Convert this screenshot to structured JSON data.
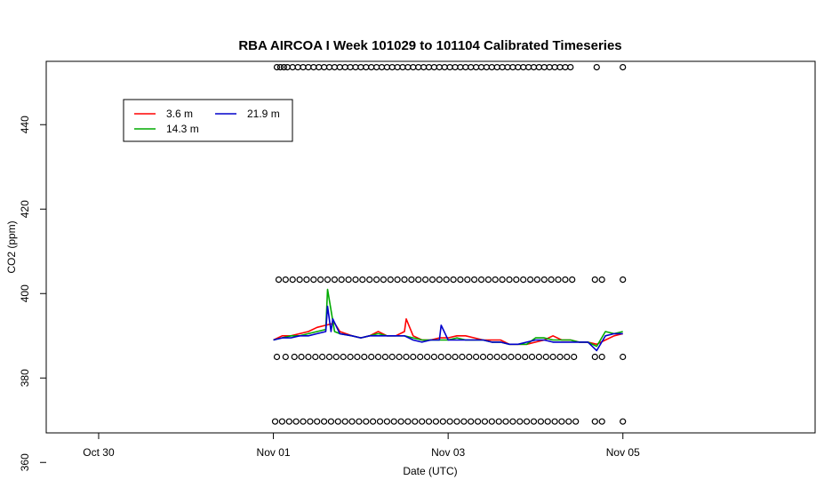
{
  "chart_data": {
    "type": "line",
    "title": "RBA AIRCOA I  Week 101029 to 101104  Calibrated Timeseries",
    "xlabel": "Date (UTC)",
    "ylabel": "CO2 (ppm)",
    "xlim": [
      -1.3,
      3.1
    ],
    "ylim": [
      367,
      455
    ],
    "x_ticks": [
      {
        "value": -1,
        "label": "Oct 30"
      },
      {
        "value": 0,
        "label": "Nov 01"
      },
      {
        "value": 1,
        "label": "Nov 03"
      },
      {
        "value": 2,
        "label": "Nov 05"
      }
    ],
    "y_ticks": [
      {
        "value": 360,
        "label": "360"
      },
      {
        "value": 380,
        "label": "380"
      },
      {
        "value": 400,
        "label": "400"
      },
      {
        "value": 420,
        "label": "420"
      },
      {
        "value": 440,
        "label": "440"
      }
    ],
    "legend": {
      "position": "top-left",
      "entries": [
        {
          "name": "3.6 m",
          "color": "#ff0000"
        },
        {
          "name": "21.9 m",
          "color": "#0000cc"
        },
        {
          "name": "14.3 m",
          "color": "#00aa00"
        }
      ]
    },
    "series": [
      {
        "name": "3.6 m",
        "color": "#ff0000",
        "x": [
          0,
          0.05,
          0.1,
          0.15,
          0.2,
          0.25,
          0.3,
          0.35,
          0.38,
          0.45,
          0.5,
          0.55,
          0.6,
          0.65,
          0.7,
          0.75,
          0.76,
          0.8,
          0.85,
          0.9,
          0.95,
          1.0,
          1.05,
          1.1,
          1.15,
          1.2,
          1.25,
          1.3,
          1.35,
          1.4,
          1.45,
          1.5,
          1.55,
          1.6,
          1.65,
          1.7,
          1.75,
          1.8,
          1.85,
          1.9,
          1.95,
          2.0
        ],
        "y": [
          389,
          390,
          390,
          390.5,
          391,
          392,
          392.5,
          393,
          391,
          390,
          389.5,
          390,
          391,
          390,
          390,
          391,
          394,
          390,
          389,
          389,
          389.5,
          389.5,
          390,
          390,
          389.5,
          389,
          389,
          389,
          388,
          388,
          388,
          388.5,
          389,
          390,
          389,
          389,
          388.5,
          388.5,
          388,
          389,
          390,
          390.5
        ]
      },
      {
        "name": "14.3 m",
        "color": "#00aa00",
        "x": [
          0,
          0.05,
          0.1,
          0.15,
          0.2,
          0.25,
          0.3,
          0.31,
          0.35,
          0.38,
          0.45,
          0.5,
          0.55,
          0.6,
          0.65,
          0.7,
          0.75,
          0.8,
          0.85,
          0.9,
          0.95,
          1.0,
          1.05,
          1.1,
          1.15,
          1.2,
          1.25,
          1.3,
          1.35,
          1.4,
          1.45,
          1.5,
          1.55,
          1.6,
          1.65,
          1.7,
          1.75,
          1.8,
          1.85,
          1.9,
          1.95,
          2.0
        ],
        "y": [
          389,
          389.5,
          390,
          390,
          390.5,
          391,
          391.5,
          401,
          391,
          390.5,
          390,
          389.5,
          390,
          390.5,
          390,
          390,
          390,
          389.5,
          389,
          389,
          389,
          389,
          389.5,
          389,
          389,
          389,
          388.5,
          388.5,
          388,
          388,
          388,
          389.5,
          389.5,
          389,
          389,
          389,
          388.5,
          388.5,
          387.5,
          391,
          390.5,
          391
        ]
      },
      {
        "name": "21.9 m",
        "color": "#0000cc",
        "x": [
          0,
          0.05,
          0.1,
          0.15,
          0.2,
          0.25,
          0.3,
          0.31,
          0.33,
          0.34,
          0.38,
          0.45,
          0.5,
          0.55,
          0.6,
          0.65,
          0.7,
          0.75,
          0.8,
          0.85,
          0.9,
          0.95,
          0.96,
          1.0,
          1.05,
          1.1,
          1.15,
          1.2,
          1.25,
          1.3,
          1.35,
          1.4,
          1.45,
          1.5,
          1.55,
          1.6,
          1.65,
          1.7,
          1.75,
          1.8,
          1.85,
          1.9,
          1.95,
          2.0
        ],
        "y": [
          389,
          389.5,
          389.5,
          390,
          390,
          390.5,
          391,
          397,
          391,
          394,
          390.5,
          390,
          389.5,
          390,
          390,
          390,
          390,
          390,
          389,
          388.5,
          389,
          389,
          392.5,
          389,
          389,
          389,
          389,
          389,
          388.5,
          388.5,
          388,
          388,
          388.5,
          389,
          389,
          388.5,
          388.5,
          388.5,
          388.5,
          388.5,
          386.5,
          390,
          390.5,
          390.5
        ]
      },
      {
        "name": "",
        "type": "scatter",
        "marker": "open-circle",
        "x": [
          0.02,
          0.04,
          0.06,
          0.08,
          0.11,
          0.14,
          0.17,
          0.2,
          0.23,
          0.26,
          0.29,
          0.32,
          0.35,
          0.38,
          0.41,
          0.44,
          0.47,
          0.5,
          0.53,
          0.56,
          0.59,
          0.62,
          0.65,
          0.68,
          0.71,
          0.74,
          0.77,
          0.8,
          0.83,
          0.86,
          0.89,
          0.92,
          0.95,
          0.98,
          1.01,
          1.04,
          1.07,
          1.1,
          1.13,
          1.16,
          1.19,
          1.22,
          1.25,
          1.28,
          1.31,
          1.34,
          1.37,
          1.4,
          1.43,
          1.46,
          1.49,
          1.52,
          1.55,
          1.58,
          1.61,
          1.64,
          1.67,
          1.7,
          1.85,
          2.0
        ],
        "y": [
          453.6,
          453.6,
          453.6,
          453.6,
          453.6,
          453.6,
          453.6,
          453.6,
          453.6,
          453.6,
          453.6,
          453.6,
          453.6,
          453.6,
          453.6,
          453.6,
          453.6,
          453.6,
          453.6,
          453.6,
          453.6,
          453.6,
          453.6,
          453.6,
          453.6,
          453.6,
          453.6,
          453.6,
          453.6,
          453.6,
          453.6,
          453.6,
          453.6,
          453.6,
          453.6,
          453.6,
          453.6,
          453.6,
          453.6,
          453.6,
          453.6,
          453.6,
          453.6,
          453.6,
          453.6,
          453.6,
          453.6,
          453.6,
          453.6,
          453.6,
          453.6,
          453.6,
          453.6,
          453.6,
          453.6,
          453.6,
          453.6,
          453.6,
          453.6,
          453.6
        ]
      },
      {
        "name": "",
        "type": "scatter",
        "marker": "open-circle",
        "x": [
          0.03,
          0.07,
          0.11,
          0.15,
          0.19,
          0.23,
          0.27,
          0.31,
          0.35,
          0.39,
          0.43,
          0.47,
          0.51,
          0.55,
          0.59,
          0.63,
          0.67,
          0.71,
          0.75,
          0.79,
          0.83,
          0.87,
          0.91,
          0.95,
          0.99,
          1.03,
          1.07,
          1.11,
          1.15,
          1.19,
          1.23,
          1.27,
          1.31,
          1.35,
          1.39,
          1.43,
          1.47,
          1.51,
          1.55,
          1.59,
          1.63,
          1.67,
          1.71,
          1.84,
          1.88,
          2.0
        ],
        "y": [
          403.3,
          403.3,
          403.3,
          403.3,
          403.3,
          403.3,
          403.3,
          403.3,
          403.3,
          403.3,
          403.3,
          403.3,
          403.3,
          403.3,
          403.3,
          403.3,
          403.3,
          403.3,
          403.3,
          403.3,
          403.3,
          403.3,
          403.3,
          403.3,
          403.3,
          403.3,
          403.3,
          403.3,
          403.3,
          403.3,
          403.3,
          403.3,
          403.3,
          403.3,
          403.3,
          403.3,
          403.3,
          403.3,
          403.3,
          403.3,
          403.3,
          403.3,
          403.3,
          403.3,
          403.3,
          403.3
        ]
      },
      {
        "name": "",
        "type": "scatter",
        "marker": "open-circle",
        "x": [
          0.02,
          0.07,
          0.12,
          0.16,
          0.2,
          0.24,
          0.28,
          0.32,
          0.36,
          0.4,
          0.44,
          0.48,
          0.52,
          0.56,
          0.6,
          0.64,
          0.68,
          0.72,
          0.76,
          0.8,
          0.84,
          0.88,
          0.92,
          0.96,
          1.0,
          1.04,
          1.08,
          1.12,
          1.16,
          1.2,
          1.24,
          1.28,
          1.32,
          1.36,
          1.4,
          1.44,
          1.48,
          1.52,
          1.56,
          1.6,
          1.64,
          1.68,
          1.72,
          1.84,
          1.88,
          2.0
        ],
        "y": [
          385,
          385,
          385,
          385,
          385,
          385,
          385,
          385,
          385,
          385,
          385,
          385,
          385,
          385,
          385,
          385,
          385,
          385,
          385,
          385,
          385,
          385,
          385,
          385,
          385,
          385,
          385,
          385,
          385,
          385,
          385,
          385,
          385,
          385,
          385,
          385,
          385,
          385,
          385,
          385,
          385,
          385,
          385,
          385,
          385,
          385
        ]
      },
      {
        "name": "",
        "type": "scatter",
        "marker": "open-circle",
        "x": [
          0.01,
          0.05,
          0.09,
          0.13,
          0.17,
          0.21,
          0.25,
          0.29,
          0.33,
          0.37,
          0.41,
          0.45,
          0.49,
          0.53,
          0.57,
          0.61,
          0.65,
          0.69,
          0.73,
          0.77,
          0.81,
          0.85,
          0.89,
          0.93,
          0.97,
          1.01,
          1.05,
          1.09,
          1.13,
          1.17,
          1.21,
          1.25,
          1.29,
          1.33,
          1.37,
          1.41,
          1.45,
          1.49,
          1.53,
          1.57,
          1.61,
          1.65,
          1.69,
          1.73,
          1.84,
          1.88,
          2.0
        ],
        "y": [
          369.7,
          369.7,
          369.7,
          369.7,
          369.7,
          369.7,
          369.7,
          369.7,
          369.7,
          369.7,
          369.7,
          369.7,
          369.7,
          369.7,
          369.7,
          369.7,
          369.7,
          369.7,
          369.7,
          369.7,
          369.7,
          369.7,
          369.7,
          369.7,
          369.7,
          369.7,
          369.7,
          369.7,
          369.7,
          369.7,
          369.7,
          369.7,
          369.7,
          369.7,
          369.7,
          369.7,
          369.7,
          369.7,
          369.7,
          369.7,
          369.7,
          369.7,
          369.7,
          369.7,
          369.7,
          369.7,
          369.7
        ]
      }
    ]
  }
}
